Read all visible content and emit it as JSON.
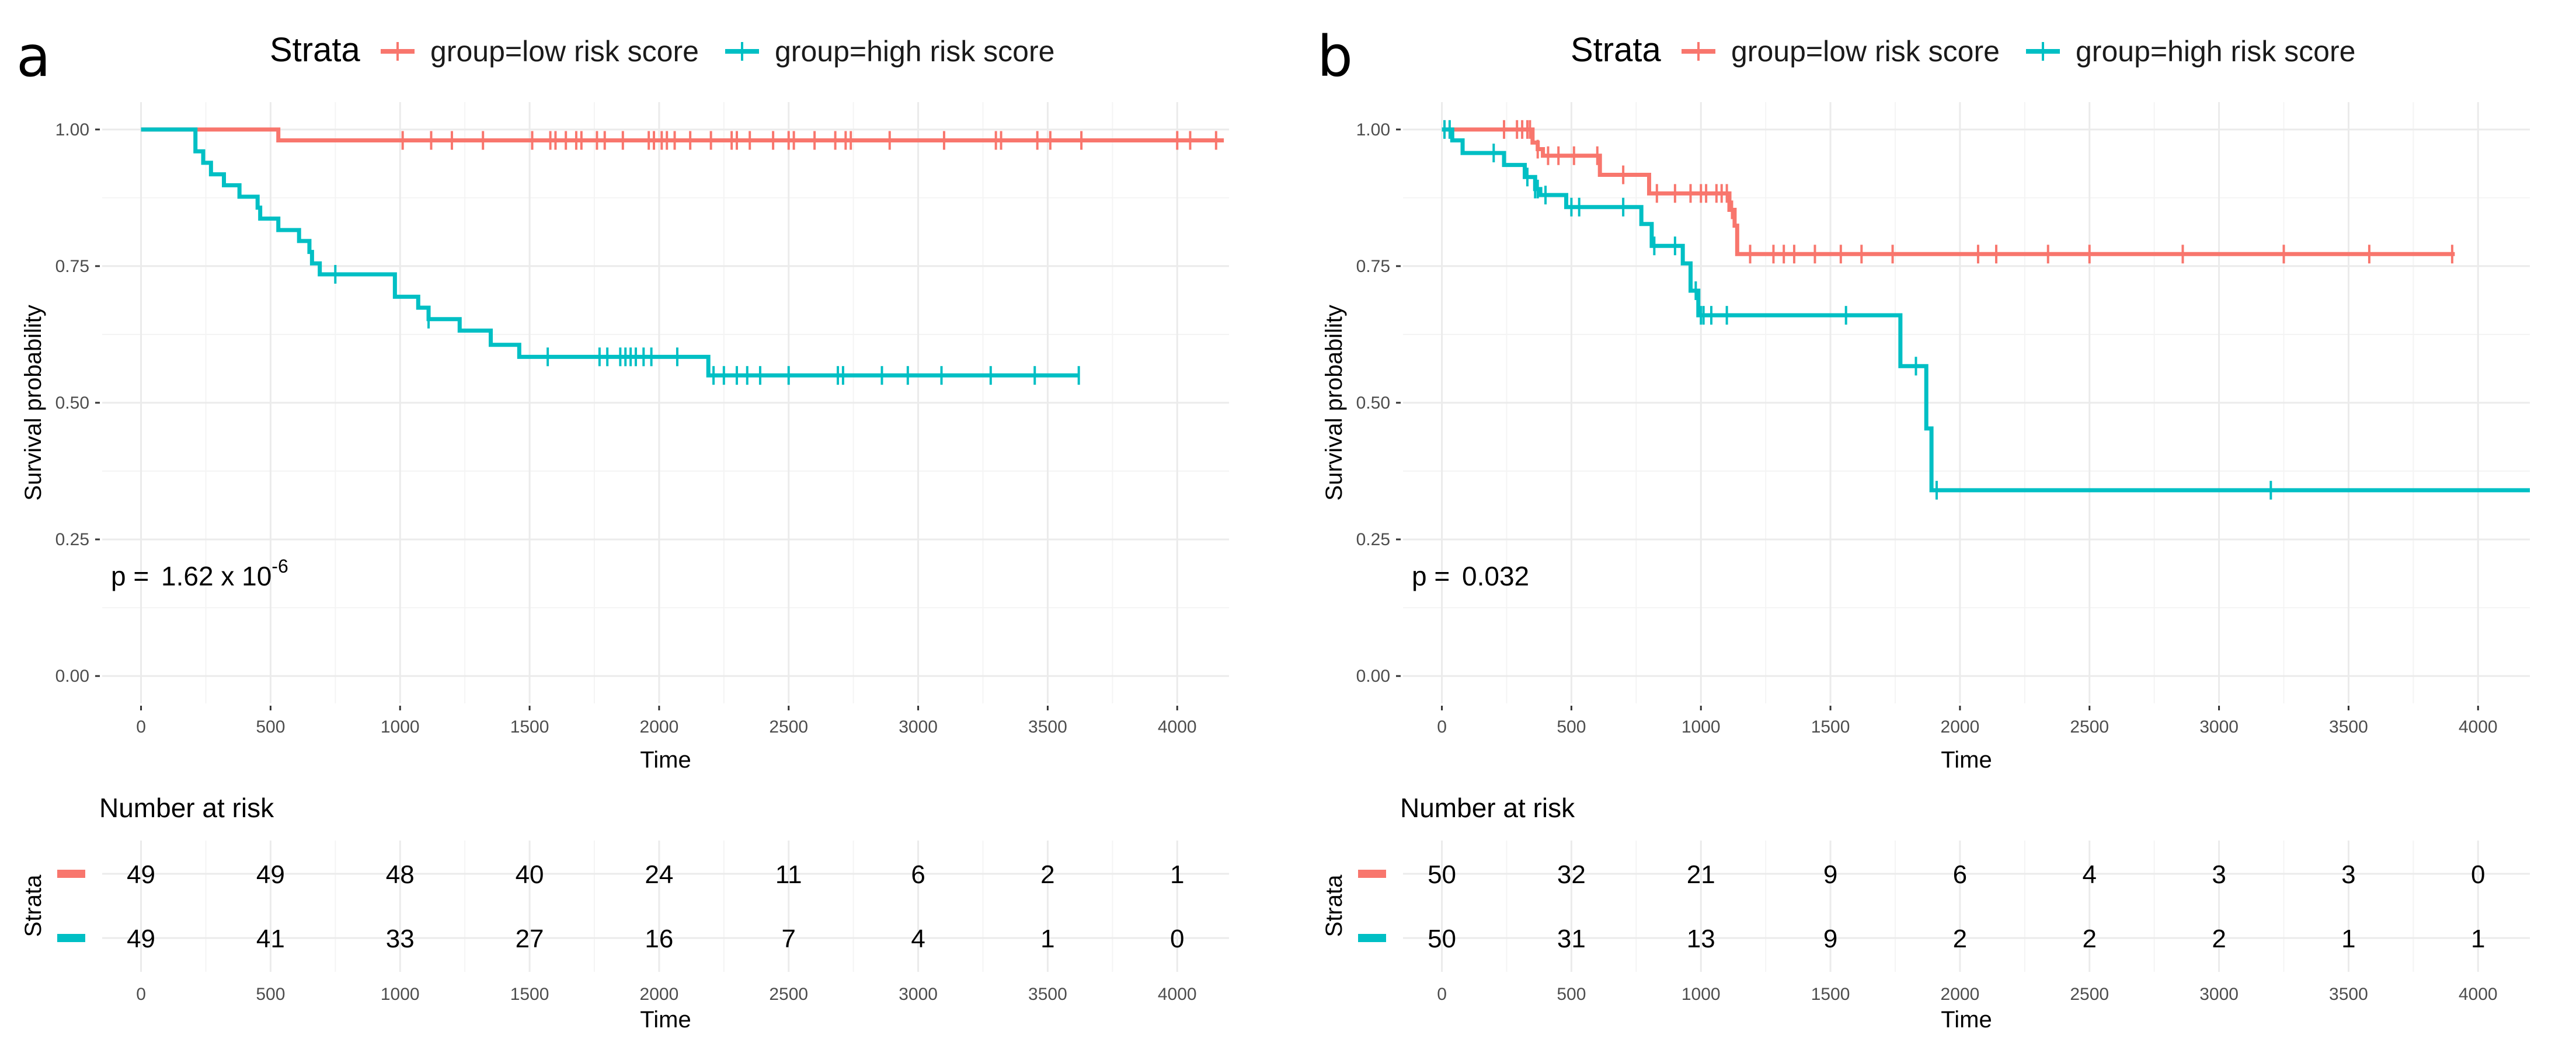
{
  "chart_data": [
    {
      "type": "line",
      "panel_label": "a",
      "legend": {
        "title": "Strata",
        "entries": [
          "group=low risk score",
          "group=high risk score"
        ]
      },
      "xlabel": "Time",
      "ylabel": "Survival probability",
      "xlim": [
        -150,
        4200
      ],
      "ylim": [
        -0.05,
        1.05
      ],
      "x_ticks": [
        "0",
        "500",
        "1000",
        "1500",
        "2000",
        "2500",
        "3000",
        "3500",
        "4000"
      ],
      "y_ticks": [
        "0.00",
        "0.25",
        "0.50",
        "0.75",
        "1.00"
      ],
      "p_value": {
        "prefix": "p = ",
        "mantissa": "1.62 x 10",
        "exponent": "-6"
      },
      "series": [
        {
          "name": "group=low risk score",
          "color": "#F8766D",
          "steps": [
            [
              0,
              1.0
            ],
            [
              530,
              0.98
            ],
            [
              4180,
              0.98
            ]
          ],
          "censor": [
            1010,
            1120,
            1200,
            1320,
            1510,
            1580,
            1600,
            1640,
            1680,
            1700,
            1760,
            1790,
            1860,
            1960,
            1980,
            2010,
            2030,
            2060,
            2120,
            2200,
            2280,
            2300,
            2350,
            2440,
            2500,
            2520,
            2600,
            2680,
            2720,
            2740,
            2890,
            3100,
            3300,
            3320,
            3460,
            3510,
            3630,
            4000,
            4050,
            4150
          ]
        },
        {
          "name": "group=high risk score",
          "color": "#00BFC4",
          "steps": [
            [
              0,
              1.0
            ],
            [
              210,
              0.96
            ],
            [
              240,
              0.939
            ],
            [
              270,
              0.918
            ],
            [
              320,
              0.898
            ],
            [
              380,
              0.877
            ],
            [
              450,
              0.857
            ],
            [
              460,
              0.837
            ],
            [
              530,
              0.816
            ],
            [
              610,
              0.796
            ],
            [
              650,
              0.776
            ],
            [
              660,
              0.755
            ],
            [
              690,
              0.735
            ],
            [
              980,
              0.694
            ],
            [
              1070,
              0.674
            ],
            [
              1110,
              0.653
            ],
            [
              1230,
              0.632
            ],
            [
              1350,
              0.606
            ],
            [
              1460,
              0.584
            ],
            [
              2190,
              0.55
            ],
            [
              3620,
              0.55
            ]
          ],
          "censor": [
            750,
            1110,
            1570,
            1770,
            1800,
            1850,
            1870,
            1890,
            1910,
            1940,
            1970,
            2070,
            2210,
            2250,
            2300,
            2340,
            2390,
            2500,
            2690,
            2710,
            2860,
            2960,
            3090,
            3280,
            3450,
            3620
          ]
        }
      ],
      "risk_table": {
        "title": "Number at risk",
        "y_label": "Strata",
        "time_ticks": [
          "0",
          "500",
          "1000",
          "1500",
          "2000",
          "2500",
          "3000",
          "3500",
          "4000"
        ],
        "xlabel": "Time",
        "rows": [
          {
            "name": "group=low risk score",
            "color": "#F8766D",
            "values": [
              "49",
              "49",
              "48",
              "40",
              "24",
              "11",
              "6",
              "2",
              "1"
            ]
          },
          {
            "name": "group=high risk score",
            "color": "#00BFC4",
            "values": [
              "49",
              "41",
              "33",
              "27",
              "16",
              "7",
              "4",
              "1",
              "0"
            ]
          }
        ]
      }
    },
    {
      "type": "line",
      "panel_label": "b",
      "legend": {
        "title": "Strata",
        "entries": [
          "group=low risk score",
          "group=high risk score"
        ]
      },
      "xlabel": "Time",
      "ylabel": "Survival probability",
      "xlim": [
        -150,
        4200
      ],
      "ylim": [
        -0.05,
        1.05
      ],
      "x_ticks": [
        "0",
        "500",
        "1000",
        "1500",
        "2000",
        "2500",
        "3000",
        "3500",
        "4000"
      ],
      "y_ticks": [
        "0.00",
        "0.25",
        "0.50",
        "0.75",
        "1.00"
      ],
      "p_value": {
        "prefix": "p = ",
        "mantissa": "0.032",
        "exponent": ""
      },
      "series": [
        {
          "name": "group=low risk score",
          "color": "#F8766D",
          "steps": [
            [
              0,
              1.0
            ],
            [
              350,
              0.976
            ],
            [
              370,
              0.964
            ],
            [
              390,
              0.952
            ],
            [
              610,
              0.917
            ],
            [
              800,
              0.883
            ],
            [
              1110,
              0.853
            ],
            [
              1130,
              0.824
            ],
            [
              1140,
              0.772
            ],
            [
              3910,
              0.772
            ]
          ],
          "censor": [
            240,
            290,
            310,
            330,
            340,
            370,
            410,
            450,
            510,
            600,
            700,
            830,
            900,
            960,
            1000,
            1020,
            1060,
            1080,
            1100,
            1120,
            1190,
            1280,
            1320,
            1360,
            1440,
            1540,
            1620,
            1740,
            2070,
            2140,
            2340,
            2500,
            2860,
            3250,
            3580,
            3900
          ]
        },
        {
          "name": "group=high risk score",
          "color": "#00BFC4",
          "steps": [
            [
              0,
              1.0
            ],
            [
              40,
              0.98
            ],
            [
              80,
              0.957
            ],
            [
              240,
              0.935
            ],
            [
              320,
              0.913
            ],
            [
              360,
              0.891
            ],
            [
              380,
              0.88
            ],
            [
              480,
              0.858
            ],
            [
              770,
              0.827
            ],
            [
              810,
              0.787
            ],
            [
              930,
              0.755
            ],
            [
              960,
              0.705
            ],
            [
              990,
              0.66
            ],
            [
              1770,
              0.567
            ],
            [
              1870,
              0.453
            ],
            [
              1890,
              0.34
            ],
            [
              4200,
              0.34
            ]
          ],
          "censor": [
            10,
            30,
            200,
            330,
            360,
            370,
            400,
            500,
            530,
            700,
            820,
            900,
            980,
            1000,
            1010,
            1040,
            1100,
            1560,
            1830,
            1910,
            3200
          ]
        }
      ],
      "risk_table": {
        "title": "Number at risk",
        "y_label": "Strata",
        "time_ticks": [
          "0",
          "500",
          "1000",
          "1500",
          "2000",
          "2500",
          "3000",
          "3500",
          "4000"
        ],
        "xlabel": "Time",
        "rows": [
          {
            "name": "group=low risk score",
            "color": "#F8766D",
            "values": [
              "50",
              "32",
              "21",
              "9",
              "6",
              "4",
              "3",
              "3",
              "0"
            ]
          },
          {
            "name": "group=high risk score",
            "color": "#00BFC4",
            "values": [
              "50",
              "31",
              "13",
              "9",
              "2",
              "2",
              "2",
              "1",
              "1"
            ]
          }
        ]
      }
    }
  ]
}
